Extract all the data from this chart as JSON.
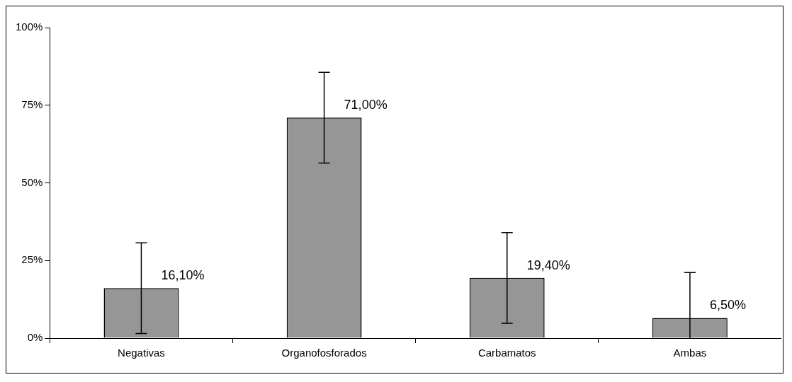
{
  "chart_data": {
    "type": "bar",
    "categories": [
      "Negativas",
      "Organofosforados",
      "Carbamatos",
      "Ambas"
    ],
    "values": [
      16.1,
      71.0,
      19.4,
      6.5
    ],
    "color": "#969696",
    "errors": [
      [
        1.5,
        30.7
      ],
      [
        56.4,
        85.6
      ],
      [
        4.8,
        34.0
      ],
      [
        0,
        21.1
      ]
    ],
    "value_labels": [
      "16,10%",
      "71,00%",
      "19,40%",
      "6,50%"
    ],
    "ylim": [
      0,
      100
    ],
    "yticks": [
      {
        "value": 0,
        "label": "0%"
      },
      {
        "value": 25,
        "label": "25%"
      },
      {
        "value": 50,
        "label": "50%"
      },
      {
        "value": 75,
        "label": "75%"
      },
      {
        "value": 100,
        "label": "100%"
      }
    ],
    "grid": false,
    "legend": false
  }
}
